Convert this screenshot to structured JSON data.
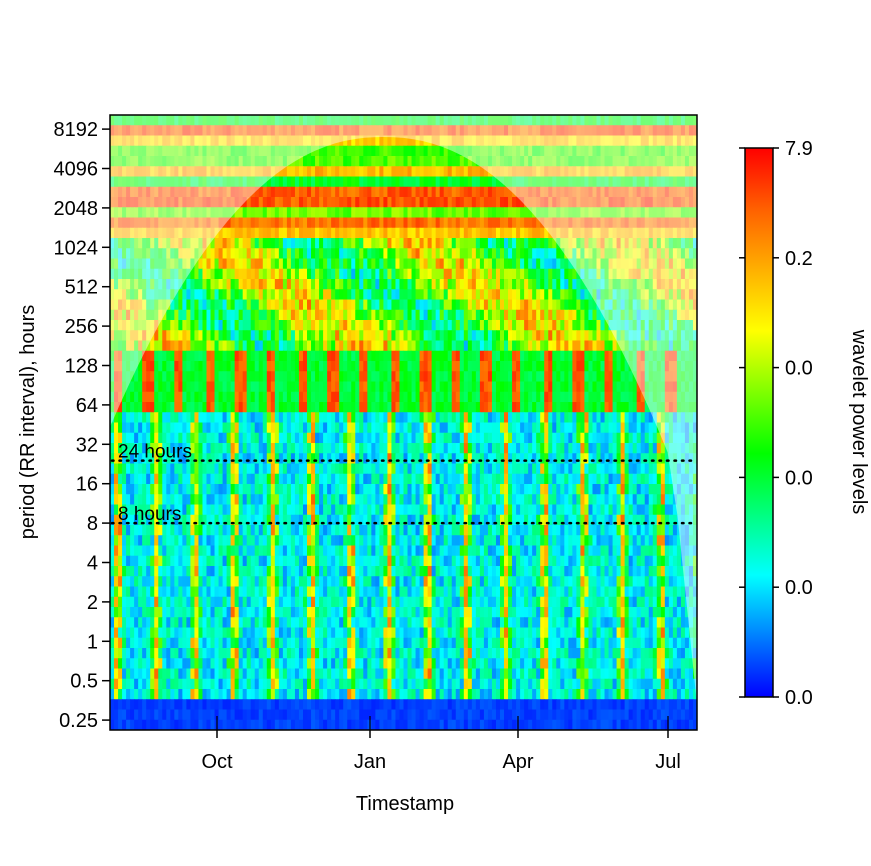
{
  "chart_data": {
    "type": "heatmap",
    "title": "",
    "xlabel": "Timestamp",
    "ylabel": "period (RR interval), hours",
    "x_tick_labels": [
      "Oct",
      "Jan",
      "Apr",
      "Jul"
    ],
    "y_scale": "log2",
    "y_ticks": [
      {
        "value": 0.25,
        "label": "0.25"
      },
      {
        "value": 0.5,
        "label": "0.5"
      },
      {
        "value": 1,
        "label": "1"
      },
      {
        "value": 2,
        "label": "2"
      },
      {
        "value": 4,
        "label": "4"
      },
      {
        "value": 8,
        "label": "8"
      },
      {
        "value": 16,
        "label": "16"
      },
      {
        "value": 32,
        "label": "32"
      },
      {
        "value": 64,
        "label": "64"
      },
      {
        "value": 128,
        "label": "128"
      },
      {
        "value": 256,
        "label": "256"
      },
      {
        "value": 512,
        "label": "512"
      },
      {
        "value": 1024,
        "label": "1024"
      },
      {
        "value": 2048,
        "label": "2048"
      },
      {
        "value": 4096,
        "label": "4096"
      },
      {
        "value": 8192,
        "label": "8192"
      }
    ],
    "ylim": [
      0.21,
      10500
    ],
    "reference_lines": [
      {
        "period": 24,
        "label": "24 hours"
      },
      {
        "period": 8,
        "label": "8 hours"
      }
    ],
    "colorbar": {
      "label": "wavelet power levels",
      "tick_labels": [
        "0.0",
        "0.0",
        "0.0",
        "0.0",
        "0.2",
        "7.9"
      ],
      "colors": [
        "#0000ff",
        "#0080ff",
        "#00ffff",
        "#00ff80",
        "#00ff00",
        "#80ff00",
        "#ffff00",
        "#ffb000",
        "#ff6000",
        "#ff0000"
      ]
    },
    "cone_of_influence": true,
    "grid": false,
    "legend": "none"
  }
}
